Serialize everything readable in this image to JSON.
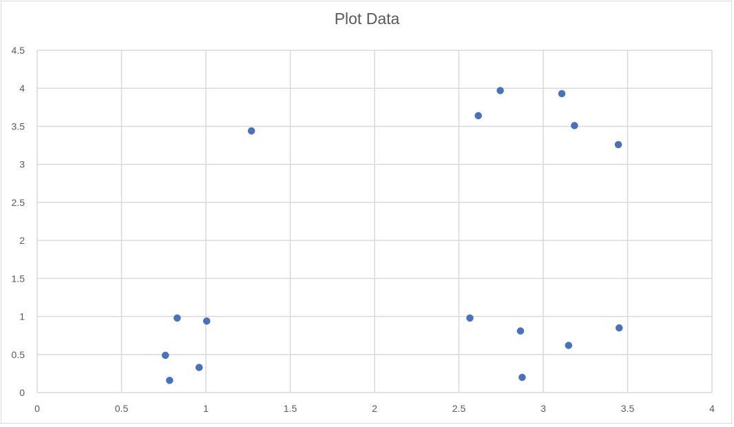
{
  "chart_data": {
    "type": "scatter",
    "title": "Plot Data",
    "xlabel": "",
    "ylabel": "",
    "xlim": [
      0,
      4
    ],
    "ylim": [
      0,
      4.5
    ],
    "x_ticks": [
      "0",
      "0.5",
      "1",
      "1.5",
      "2",
      "2.5",
      "3",
      "3.5",
      "4"
    ],
    "y_ticks": [
      "0",
      "0.5",
      "1",
      "1.5",
      "2",
      "2.5",
      "3",
      "3.5",
      "4",
      "4.5"
    ],
    "grid": true,
    "legend": "none",
    "marker_color": "#4472c4",
    "series": [
      {
        "points": [
          {
            "x": 0.76,
            "y": 0.49
          },
          {
            "x": 0.785,
            "y": 0.16
          },
          {
            "x": 0.83,
            "y": 0.98
          },
          {
            "x": 0.96,
            "y": 0.33
          },
          {
            "x": 1.005,
            "y": 0.94
          },
          {
            "x": 1.27,
            "y": 3.44
          },
          {
            "x": 2.565,
            "y": 0.98
          },
          {
            "x": 2.615,
            "y": 3.64
          },
          {
            "x": 2.745,
            "y": 3.97
          },
          {
            "x": 2.865,
            "y": 0.81
          },
          {
            "x": 2.875,
            "y": 0.2
          },
          {
            "x": 3.11,
            "y": 3.93
          },
          {
            "x": 3.15,
            "y": 0.62
          },
          {
            "x": 3.185,
            "y": 3.51
          },
          {
            "x": 3.445,
            "y": 3.26
          },
          {
            "x": 3.45,
            "y": 0.85
          }
        ]
      }
    ]
  }
}
